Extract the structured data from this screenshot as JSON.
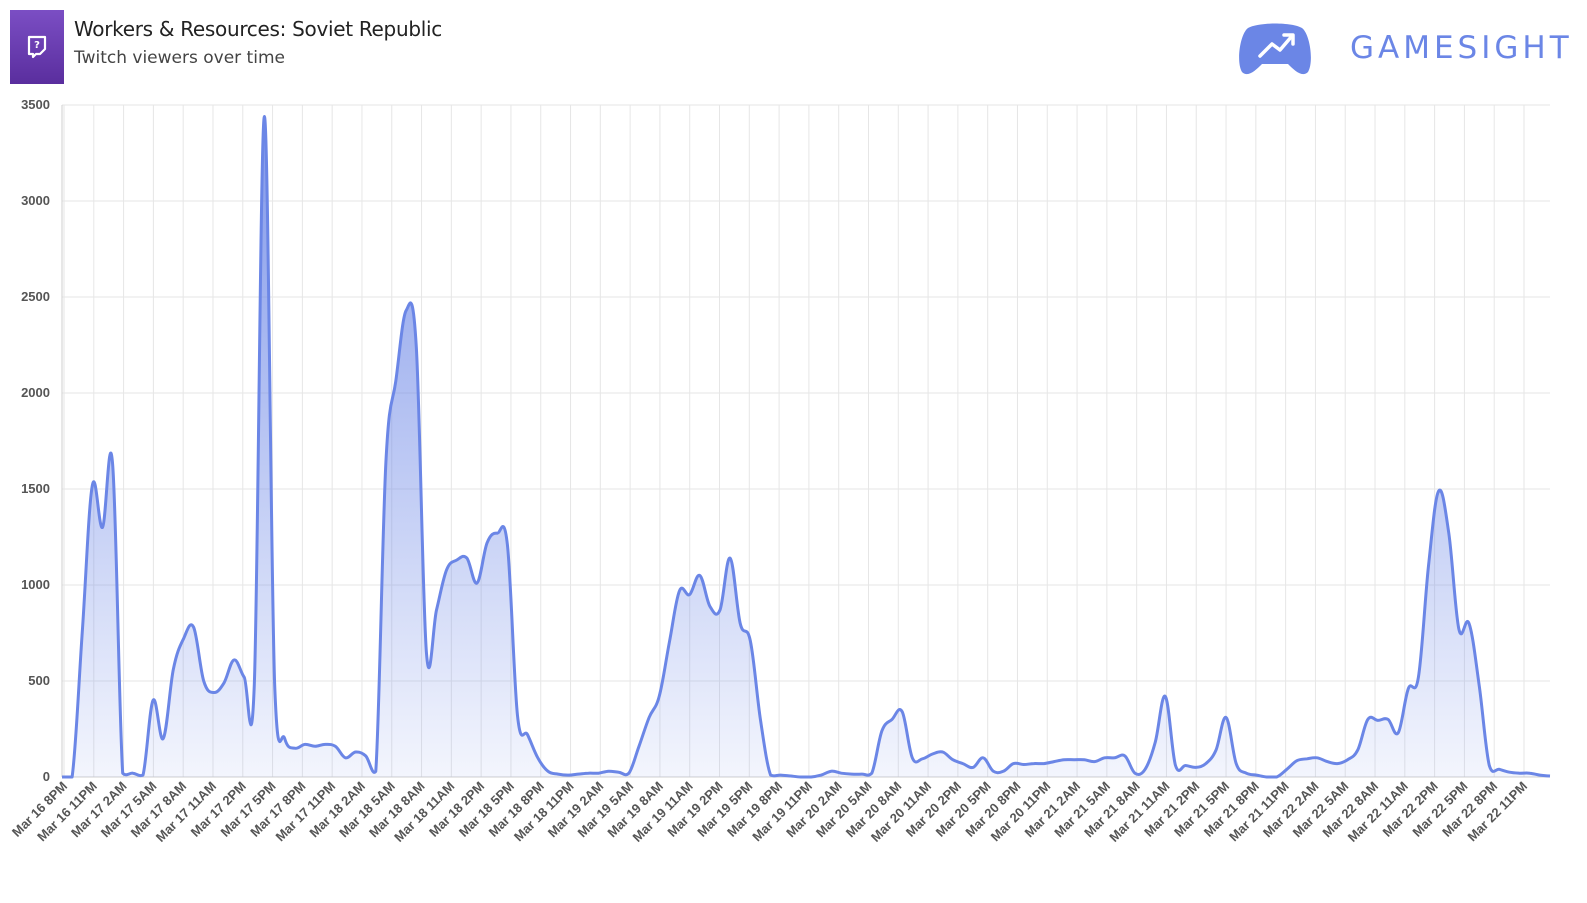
{
  "header": {
    "title": "Workers & Resources: Soviet Republic",
    "subtitle": "Twitch viewers over time",
    "brand": "GAMESIGHT",
    "icon": "twitch-icon"
  },
  "colors": {
    "line": "#6b86e6",
    "fill": "#8fa3ec",
    "icon_bg": "#6a3bb3",
    "brand": "#6b86e6",
    "grid": "#e6e6e6"
  },
  "chart_data": {
    "type": "area",
    "title": "",
    "xlabel": "",
    "ylabel": "",
    "ylim": [
      0,
      3500
    ],
    "yticks": [
      0,
      500,
      1000,
      1500,
      2000,
      2500,
      3000,
      3500
    ],
    "grid": true,
    "legend": "none",
    "x_tick_labels": [
      "Mar 16 8PM",
      "Mar 16 11PM",
      "Mar 17 2AM",
      "Mar 17 5AM",
      "Mar 17 8AM",
      "Mar 17 11AM",
      "Mar 17 2PM",
      "Mar 17 5PM",
      "Mar 17 8PM",
      "Mar 17 11PM",
      "Mar 18 2AM",
      "Mar 18 5AM",
      "Mar 18 8AM",
      "Mar 18 11AM",
      "Mar 18 2PM",
      "Mar 18 5PM",
      "Mar 18 8PM",
      "Mar 18 11PM",
      "Mar 19 2AM",
      "Mar 19 5AM",
      "Mar 19 8AM",
      "Mar 19 11AM",
      "Mar 19 2PM",
      "Mar 19 5PM",
      "Mar 19 8PM",
      "Mar 19 11PM",
      "Mar 20 2AM",
      "Mar 20 5AM",
      "Mar 20 8AM",
      "Mar 20 11AM",
      "Mar 20 2PM",
      "Mar 20 5PM",
      "Mar 20 8PM",
      "Mar 20 11PM",
      "Mar 21 2AM",
      "Mar 21 5AM",
      "Mar 21 8AM",
      "Mar 21 11AM",
      "Mar 21 2PM",
      "Mar 21 5PM",
      "Mar 21 8PM",
      "Mar 21 11PM",
      "Mar 22 2AM",
      "Mar 22 5AM",
      "Mar 22 8AM",
      "Mar 22 11AM",
      "Mar 22 2PM",
      "Mar 22 5PM",
      "Mar 22 8PM",
      "Mar 22 11PM"
    ],
    "series": [
      {
        "values": [
          0,
          0,
          750,
          1520,
          1300,
          1630,
          20,
          20,
          10,
          400,
          200,
          560,
          720,
          780,
          500,
          440,
          490,
          610,
          520,
          480,
          3440,
          490,
          200,
          150,
          170,
          160,
          170,
          160,
          100,
          130,
          110,
          30,
          1640,
          2070,
          2430,
          2240,
          650,
          870,
          1080,
          1130,
          1140,
          1010,
          1220,
          1270,
          1210,
          320,
          220,
          100,
          30,
          15,
          10,
          15,
          20,
          20,
          30,
          25,
          20,
          160,
          310,
          420,
          700,
          970,
          950,
          1050,
          890,
          870,
          1140,
          800,
          710,
          300,
          10,
          10,
          5,
          0,
          0,
          10,
          30,
          20,
          15,
          15,
          20,
          240,
          300,
          340,
          100,
          95,
          120,
          130,
          90,
          70,
          50,
          100,
          30,
          30,
          70,
          65,
          70,
          70,
          80,
          90,
          90,
          90,
          80,
          100,
          100,
          110,
          20,
          40,
          180,
          420,
          60,
          60,
          50,
          70,
          140,
          310,
          70,
          20,
          10,
          0,
          0,
          40,
          85,
          95,
          100,
          80,
          70,
          90,
          140,
          300,
          295,
          300,
          230,
          460,
          520,
          1100,
          1490,
          1270,
          770,
          800,
          480,
          60,
          40,
          25,
          20,
          20,
          10,
          5
        ]
      }
    ]
  }
}
